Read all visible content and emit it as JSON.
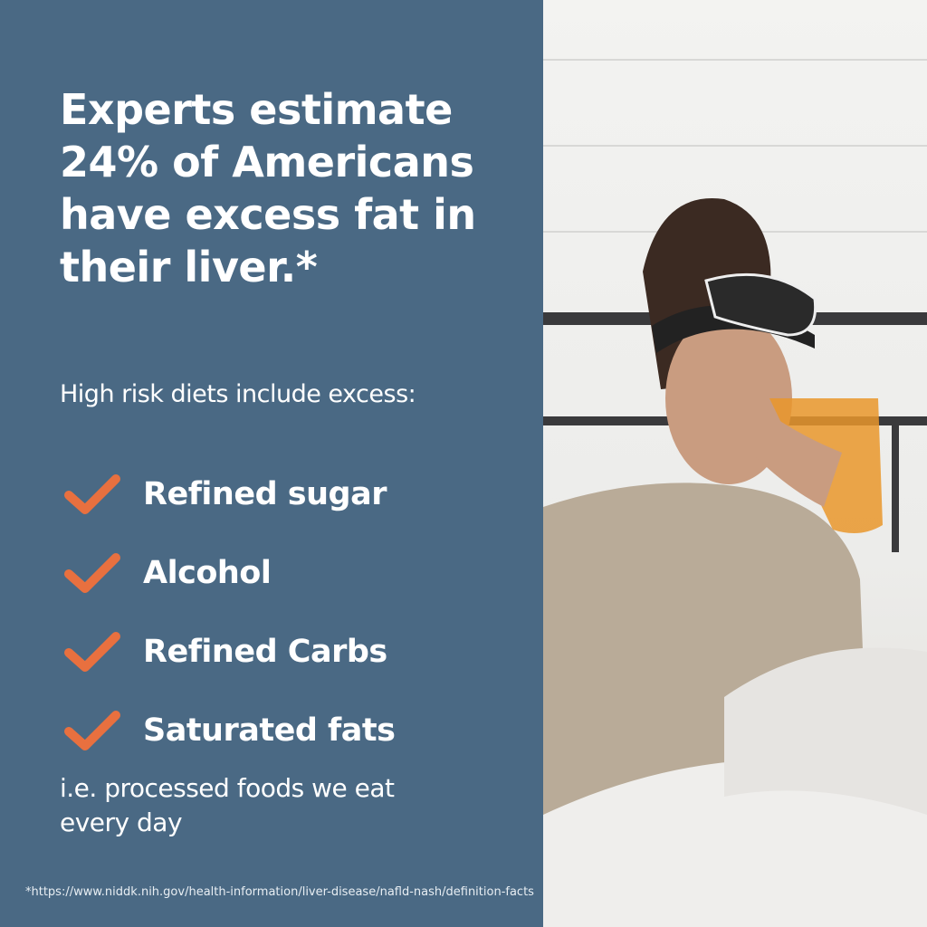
{
  "headline": "Experts estimate 24% of Americans have excess fat in their liver.*",
  "intro": "High risk diets include excess:",
  "items": [
    {
      "label": "Refined sugar",
      "icon": "check-icon"
    },
    {
      "label": "Alcohol",
      "icon": "check-icon"
    },
    {
      "label": "Refined Carbs",
      "icon": "check-icon"
    },
    {
      "label": "Saturated fats",
      "icon": "check-icon"
    }
  ],
  "note": "i.e. processed foods we eat every day",
  "footnote": "*https://www.niddk.nih.gov/health-information/liver-disease/nafld-nash/definition-facts",
  "colors": {
    "panel": "#4a6984",
    "accent": "#e8703f",
    "text": "#ffffff"
  },
  "photo": "woman in bed wearing polka-dot sleep mask drinking orange juice"
}
